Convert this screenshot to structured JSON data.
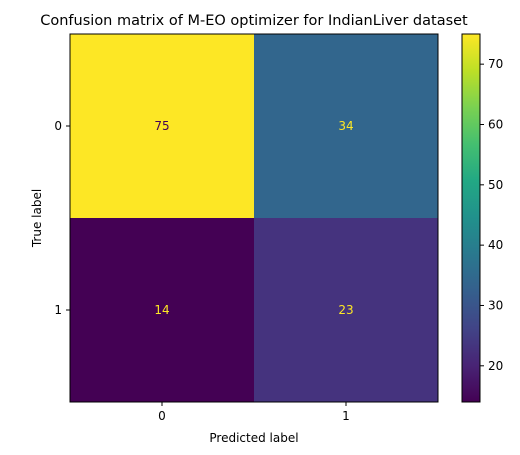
{
  "chart_data": {
    "type": "heatmap",
    "title": "Confusion matrix of M-EO optimizer for IndianLiver dataset",
    "xlabel": "Predicted label",
    "ylabel": "True label",
    "x_categories": [
      "0",
      "1"
    ],
    "y_categories": [
      "0",
      "1"
    ],
    "values": [
      [
        75,
        34
      ],
      [
        14,
        23
      ]
    ],
    "colormap": "viridis",
    "colorbar": {
      "range": [
        14,
        75
      ],
      "ticks": [
        20,
        30,
        40,
        50,
        60,
        70
      ]
    },
    "colors": {
      "label_on_dark": "#fde725",
      "label_on_light": "#440154"
    }
  }
}
